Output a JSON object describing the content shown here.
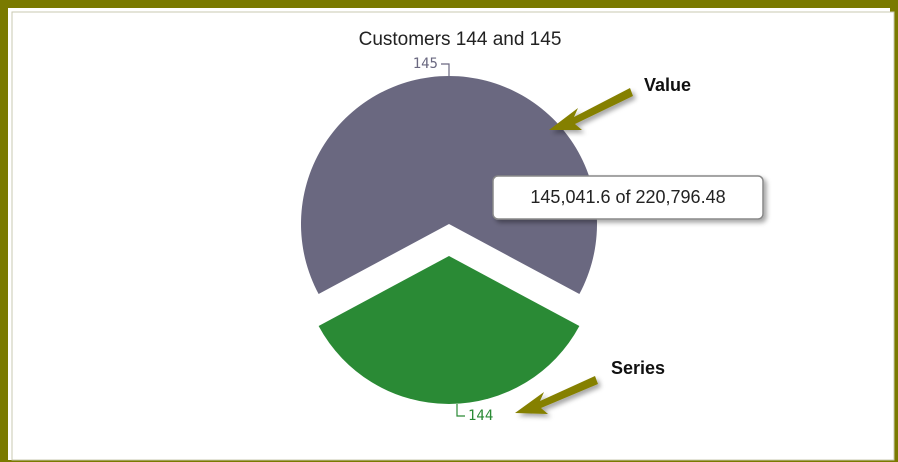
{
  "chart_data": {
    "type": "pie",
    "title": "Customers 144 and 145",
    "categories": [
      "145",
      "144"
    ],
    "values": [
      145041.6,
      75754.88
    ],
    "colors": [
      "#6a6880",
      "#2a8a35"
    ],
    "tooltip": "145,041.6 of 220,796.48",
    "annotations": [
      "Value",
      "Series"
    ]
  }
}
